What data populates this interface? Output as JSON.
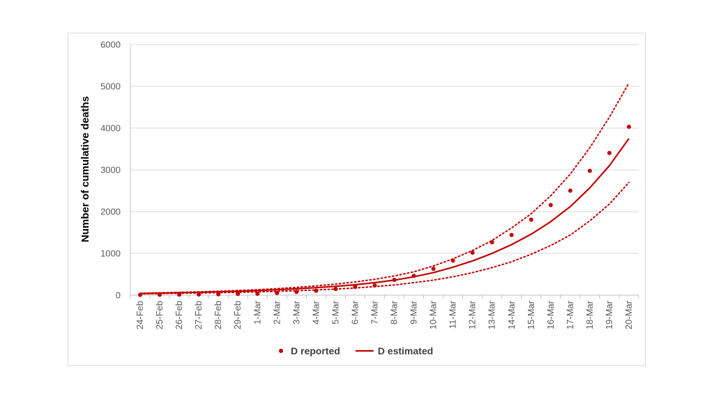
{
  "colors": {
    "series": "#c00000",
    "grid": "#d9d9d9",
    "axis": "#bfbfbf",
    "tick_text": "#595959"
  },
  "chart_data": {
    "type": "line",
    "title": "",
    "xlabel": "",
    "ylabel": "Number of cumulative deaths",
    "ylim": [
      0,
      6000
    ],
    "yticks": [
      0,
      1000,
      2000,
      3000,
      4000,
      5000,
      6000
    ],
    "grid": true,
    "legend_position": "bottom",
    "categories": [
      "24-Feb",
      "25-Feb",
      "26-Feb",
      "27-Feb",
      "28-Feb",
      "29-Feb",
      "1-Mar",
      "2-Mar",
      "3-Mar",
      "4-Mar",
      "5-Mar",
      "6-Mar",
      "7-Mar",
      "8-Mar",
      "9-Mar",
      "10-Mar",
      "11-Mar",
      "12-Mar",
      "13-Mar",
      "14-Mar",
      "15-Mar",
      "16-Mar",
      "17-Mar",
      "18-Mar",
      "19-Mar",
      "20-Mar"
    ],
    "series": [
      {
        "name": "D reported",
        "style": "points",
        "values": [
          7,
          10,
          12,
          17,
          21,
          29,
          34,
          52,
          79,
          107,
          148,
          197,
          233,
          366,
          463,
          631,
          827,
          1016,
          1266,
          1441,
          1809,
          2158,
          2503,
          2978,
          3405,
          4032
        ]
      },
      {
        "name": "D estimated",
        "style": "line",
        "values": [
          40,
          50,
          60,
          70,
          82,
          95,
          110,
          130,
          152,
          180,
          212,
          250,
          300,
          360,
          440,
          540,
          670,
          820,
          1000,
          1210,
          1460,
          1760,
          2120,
          2570,
          3100,
          3750
        ]
      },
      {
        "name": "",
        "style": "dotted",
        "in_legend": false,
        "values": [
          45,
          56,
          68,
          80,
          95,
          112,
          132,
          157,
          187,
          223,
          265,
          317,
          380,
          460,
          560,
          700,
          870,
          1070,
          1310,
          1610,
          1950,
          2380,
          2900,
          3530,
          4260,
          5080
        ]
      },
      {
        "name": "",
        "style": "dotted",
        "in_legend": false,
        "values": [
          30,
          38,
          45,
          52,
          60,
          68,
          78,
          92,
          107,
          125,
          146,
          172,
          205,
          245,
          300,
          360,
          440,
          540,
          660,
          800,
          980,
          1190,
          1440,
          1780,
          2180,
          2700
        ]
      }
    ]
  }
}
